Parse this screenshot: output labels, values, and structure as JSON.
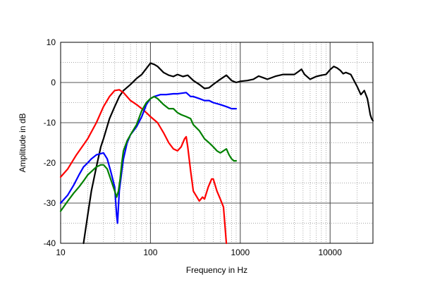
{
  "chart_data": {
    "type": "line",
    "title": "",
    "xlabel": "Frequency in Hz",
    "ylabel": "Amplitude in dB",
    "x_scale": "log",
    "xlim": [
      10,
      30000
    ],
    "ylim": [
      -40,
      10
    ],
    "x_ticks": [
      10,
      100,
      1000,
      10000
    ],
    "x_tick_labels": [
      "10",
      "100",
      "1000",
      "10000"
    ],
    "y_ticks": [
      10,
      0,
      -10,
      -20,
      -30,
      -40
    ],
    "y_tick_labels": [
      "10",
      "0",
      "-10",
      "-20",
      "-30",
      "-40"
    ],
    "grid": true,
    "legend": "none",
    "series": [
      {
        "color": "#000000",
        "points": [
          [
            18,
            -40
          ],
          [
            20,
            -33
          ],
          [
            22,
            -27
          ],
          [
            25,
            -21
          ],
          [
            28,
            -16
          ],
          [
            30,
            -14
          ],
          [
            35,
            -9
          ],
          [
            40,
            -6
          ],
          [
            45,
            -3.5
          ],
          [
            50,
            -2
          ],
          [
            60,
            -0.5
          ],
          [
            70,
            1
          ],
          [
            80,
            2
          ],
          [
            90,
            3.5
          ],
          [
            100,
            4.8
          ],
          [
            110,
            4.5
          ],
          [
            120,
            4
          ],
          [
            140,
            2.5
          ],
          [
            160,
            1.8
          ],
          [
            180,
            1.5
          ],
          [
            200,
            2
          ],
          [
            230,
            1.5
          ],
          [
            260,
            1.8
          ],
          [
            300,
            0.5
          ],
          [
            350,
            -0.5
          ],
          [
            400,
            -1.5
          ],
          [
            450,
            -1.3
          ],
          [
            500,
            -0.5
          ],
          [
            600,
            0.8
          ],
          [
            700,
            1.8
          ],
          [
            800,
            0.5
          ],
          [
            900,
            0
          ],
          [
            1000,
            0.3
          ],
          [
            1200,
            0.5
          ],
          [
            1400,
            0.8
          ],
          [
            1600,
            1.6
          ],
          [
            1800,
            1.2
          ],
          [
            2000,
            0.8
          ],
          [
            2500,
            1.6
          ],
          [
            3000,
            2
          ],
          [
            3500,
            2
          ],
          [
            4000,
            2
          ],
          [
            4500,
            2.8
          ],
          [
            4800,
            3.3
          ],
          [
            5200,
            2
          ],
          [
            6000,
            0.8
          ],
          [
            7000,
            1.5
          ],
          [
            8000,
            1.8
          ],
          [
            9000,
            2
          ],
          [
            10000,
            3.2
          ],
          [
            11000,
            4
          ],
          [
            12000,
            3.6
          ],
          [
            13000,
            3
          ],
          [
            14000,
            2.2
          ],
          [
            15000,
            2.5
          ],
          [
            17000,
            2
          ],
          [
            20000,
            -1
          ],
          [
            22000,
            -3
          ],
          [
            23000,
            -2.5
          ],
          [
            24000,
            -2
          ],
          [
            26000,
            -4
          ],
          [
            27000,
            -6
          ],
          [
            28000,
            -8
          ],
          [
            29000,
            -9
          ],
          [
            30000,
            -9.5
          ]
        ]
      },
      {
        "color": "#ff0000",
        "points": [
          [
            10,
            -23.5
          ],
          [
            12,
            -21.5
          ],
          [
            15,
            -18
          ],
          [
            18,
            -15.5
          ],
          [
            20,
            -14
          ],
          [
            25,
            -10
          ],
          [
            30,
            -6
          ],
          [
            35,
            -3.5
          ],
          [
            40,
            -2
          ],
          [
            45,
            -1.8
          ],
          [
            50,
            -2.5
          ],
          [
            60,
            -4.5
          ],
          [
            70,
            -5.5
          ],
          [
            80,
            -6.5
          ],
          [
            90,
            -7.5
          ],
          [
            100,
            -8.5
          ],
          [
            120,
            -10
          ],
          [
            140,
            -12.5
          ],
          [
            160,
            -15
          ],
          [
            180,
            -16.5
          ],
          [
            200,
            -17
          ],
          [
            220,
            -16
          ],
          [
            240,
            -14
          ],
          [
            250,
            -13.5
          ],
          [
            260,
            -16
          ],
          [
            280,
            -22
          ],
          [
            300,
            -27
          ],
          [
            350,
            -29.5
          ],
          [
            380,
            -28.5
          ],
          [
            400,
            -29
          ],
          [
            440,
            -26
          ],
          [
            480,
            -24
          ],
          [
            500,
            -24
          ],
          [
            550,
            -27
          ],
          [
            600,
            -29
          ],
          [
            650,
            -31
          ],
          [
            700,
            -40
          ]
        ]
      },
      {
        "color": "#0000ff",
        "points": [
          [
            10,
            -30
          ],
          [
            12,
            -28
          ],
          [
            14,
            -25.5
          ],
          [
            16,
            -23
          ],
          [
            18,
            -21
          ],
          [
            20,
            -20
          ],
          [
            22,
            -19
          ],
          [
            25,
            -18
          ],
          [
            30,
            -17.5
          ],
          [
            33,
            -19
          ],
          [
            36,
            -22
          ],
          [
            40,
            -26
          ],
          [
            42,
            -33
          ],
          [
            43,
            -35
          ],
          [
            45,
            -27
          ],
          [
            48,
            -22
          ],
          [
            50,
            -19
          ],
          [
            55,
            -15
          ],
          [
            60,
            -13
          ],
          [
            70,
            -11
          ],
          [
            80,
            -8.5
          ],
          [
            90,
            -5.5
          ],
          [
            100,
            -4
          ],
          [
            110,
            -3.5
          ],
          [
            130,
            -3
          ],
          [
            150,
            -3
          ],
          [
            180,
            -2.8
          ],
          [
            200,
            -2.8
          ],
          [
            250,
            -2.5
          ],
          [
            280,
            -3.5
          ],
          [
            300,
            -3.5
          ],
          [
            350,
            -4
          ],
          [
            400,
            -4.5
          ],
          [
            450,
            -4.5
          ],
          [
            500,
            -5
          ],
          [
            600,
            -5.5
          ],
          [
            700,
            -6
          ],
          [
            800,
            -6.5
          ],
          [
            900,
            -6.5
          ]
        ]
      },
      {
        "color": "#008000",
        "points": [
          [
            10,
            -32
          ],
          [
            12,
            -29.5
          ],
          [
            14,
            -27.5
          ],
          [
            16,
            -26
          ],
          [
            18,
            -24.5
          ],
          [
            20,
            -23
          ],
          [
            25,
            -21
          ],
          [
            28,
            -20.5
          ],
          [
            30,
            -20.5
          ],
          [
            33,
            -21.5
          ],
          [
            36,
            -24
          ],
          [
            40,
            -27
          ],
          [
            42,
            -28.5
          ],
          [
            44,
            -27
          ],
          [
            46,
            -24
          ],
          [
            48,
            -20
          ],
          [
            50,
            -17
          ],
          [
            55,
            -14.5
          ],
          [
            60,
            -13
          ],
          [
            70,
            -10.5
          ],
          [
            80,
            -7
          ],
          [
            90,
            -5
          ],
          [
            100,
            -4
          ],
          [
            110,
            -3.5
          ],
          [
            120,
            -4
          ],
          [
            140,
            -5.5
          ],
          [
            160,
            -6.5
          ],
          [
            180,
            -6.5
          ],
          [
            200,
            -7.5
          ],
          [
            220,
            -8
          ],
          [
            250,
            -8.5
          ],
          [
            280,
            -9
          ],
          [
            300,
            -10.5
          ],
          [
            350,
            -12
          ],
          [
            400,
            -14
          ],
          [
            450,
            -15
          ],
          [
            500,
            -16
          ],
          [
            550,
            -17
          ],
          [
            600,
            -17.5
          ],
          [
            650,
            -17
          ],
          [
            700,
            -16.5
          ],
          [
            750,
            -18
          ],
          [
            800,
            -19
          ],
          [
            850,
            -19.5
          ],
          [
            900,
            -19.5
          ]
        ]
      }
    ]
  }
}
